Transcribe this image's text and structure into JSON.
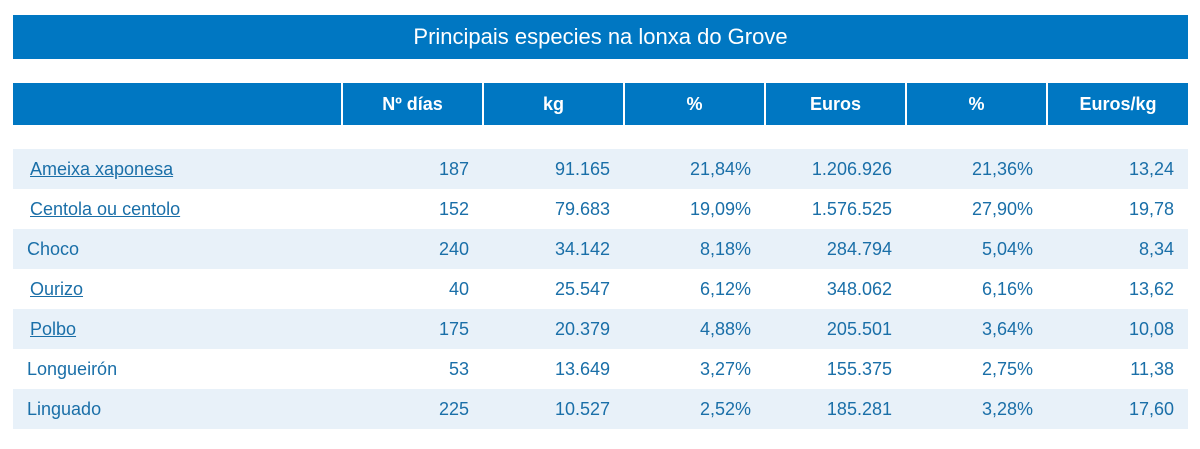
{
  "title": "Principais especies na lonxa do Grove",
  "columns": [
    "",
    "Nº días",
    "kg",
    "%",
    "Euros",
    "%",
    "Euros/kg"
  ],
  "rows": [
    {
      "name": "Ameixa xaponesa",
      "link": true,
      "dias": "187",
      "kg": "91.165",
      "pct_kg": "21,84%",
      "euros": "1.206.926",
      "pct_euros": "21,36%",
      "euros_kg": "13,24"
    },
    {
      "name": "Centola ou centolo",
      "link": true,
      "dias": "152",
      "kg": "79.683",
      "pct_kg": "19,09%",
      "euros": "1.576.525",
      "pct_euros": "27,90%",
      "euros_kg": "19,78"
    },
    {
      "name": "Choco",
      "link": false,
      "dias": "240",
      "kg": "34.142",
      "pct_kg": "8,18%",
      "euros": "284.794",
      "pct_euros": "5,04%",
      "euros_kg": "8,34"
    },
    {
      "name": "Ourizo",
      "link": true,
      "dias": "40",
      "kg": "25.547",
      "pct_kg": "6,12%",
      "euros": "348.062",
      "pct_euros": "6,16%",
      "euros_kg": "13,62"
    },
    {
      "name": "Polbo",
      "link": true,
      "dias": "175",
      "kg": "20.379",
      "pct_kg": "4,88%",
      "euros": "205.501",
      "pct_euros": "3,64%",
      "euros_kg": "10,08"
    },
    {
      "name": "Longueirón",
      "link": false,
      "dias": "53",
      "kg": "13.649",
      "pct_kg": "3,27%",
      "euros": "155.375",
      "pct_euros": "2,75%",
      "euros_kg": "11,38"
    },
    {
      "name": "Linguado",
      "link": false,
      "dias": "225",
      "kg": "10.527",
      "pct_kg": "2,52%",
      "euros": "185.281",
      "pct_euros": "3,28%",
      "euros_kg": "17,60"
    }
  ],
  "colors": {
    "header_bg": "#0077c2",
    "header_text": "#ffffff",
    "row_shaded": "#e8f1f9",
    "row_text": "#1a6fa8"
  }
}
